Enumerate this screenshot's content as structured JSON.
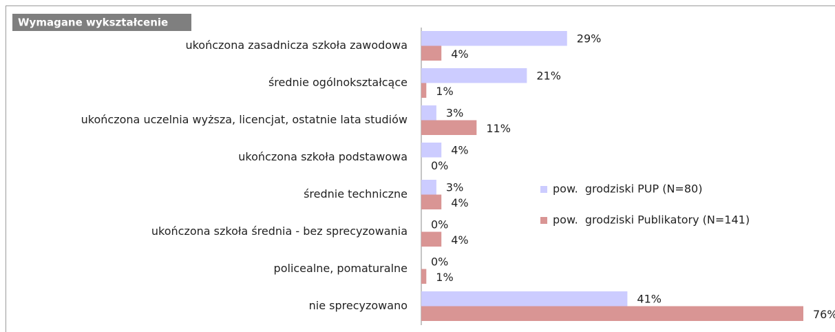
{
  "chart_data": {
    "type": "bar",
    "orientation": "horizontal",
    "title": "Wymagane wykształcenie",
    "categories": [
      "ukończona zasadnicza szkoła zawodowa",
      "średnie ogólnokształcące",
      "ukończona uczelnia wyższa, licencjat, ostatnie lata studiów",
      "ukończona szkoła podstawowa",
      "średnie techniczne",
      "ukończona szkoła średnia - bez sprecyzowania",
      "policealne, pomaturalne",
      "nie sprecyzowano"
    ],
    "series": [
      {
        "name": "pow.  grodziski PUP (N=80)",
        "color": "#ccccff",
        "values": [
          29,
          21,
          3,
          4,
          3,
          0,
          0,
          41
        ],
        "value_labels": [
          "29%",
          "21%",
          "3%",
          "4%",
          "3%",
          "0%",
          "0%",
          "41%"
        ]
      },
      {
        "name": "pow.  grodziski Publikatory (N=141)",
        "color": "#d99594",
        "values": [
          4,
          1,
          11,
          0,
          4,
          4,
          1,
          76
        ],
        "value_labels": [
          "4%",
          "1%",
          "11%",
          "0%",
          "4%",
          "4%",
          "1%",
          "76%"
        ]
      }
    ],
    "xlim": [
      0,
      76
    ],
    "legend": "right"
  }
}
